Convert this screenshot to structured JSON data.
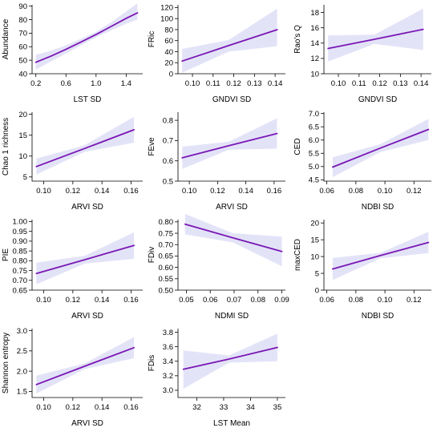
{
  "chart_data": [
    {
      "type": "line",
      "ylabel": "Abundance",
      "xlabel": "LST SD",
      "xticks": [
        0.2,
        0.6,
        1.0,
        1.4
      ],
      "xtick_labels": [
        "0.2",
        "0.6",
        "1.0",
        "1.4"
      ],
      "yticks": [
        40,
        50,
        60,
        70,
        80,
        90
      ],
      "ytick_labels": [
        "40",
        "50",
        "60",
        "70",
        "80",
        "90"
      ],
      "xlim": [
        0.15,
        1.62
      ],
      "ylim": [
        40,
        91
      ],
      "fit": {
        "x": [
          0.2,
          0.4,
          0.6,
          0.8,
          1.0,
          1.2,
          1.4,
          1.55
        ],
        "y": [
          48.5,
          53.0,
          58.0,
          63.5,
          69.0,
          75.0,
          81.0,
          85.0
        ]
      },
      "ci_lower": [
        43,
        49,
        55,
        61,
        67,
        72,
        77,
        80
      ],
      "ci_upper": [
        54,
        57,
        61,
        66,
        71,
        78,
        86,
        92
      ]
    },
    {
      "type": "line",
      "ylabel": "FRic",
      "xlabel": "GNDVI SD",
      "xticks": [
        0.1,
        0.11,
        0.12,
        0.13,
        0.14
      ],
      "xtick_labels": [
        "0.10",
        "0.11",
        "0.12",
        "0.13",
        "0.14"
      ],
      "yticks": [
        0,
        20,
        40,
        60,
        80,
        100,
        120
      ],
      "ytick_labels": [
        "0",
        "20",
        "40",
        "60",
        "80",
        "100",
        "120"
      ],
      "xlim": [
        0.093,
        0.145
      ],
      "ylim": [
        0,
        125
      ],
      "fit": {
        "x": [
          0.095,
          0.1175,
          0.141
        ],
        "y": [
          23,
          51,
          80
        ]
      },
      "ci_lower": [
        2,
        40,
        50
      ],
      "ci_upper": [
        45,
        61,
        118
      ]
    },
    {
      "type": "line",
      "ylabel": "Rao's Q",
      "xlabel": "GNDVI SD",
      "xticks": [
        0.1,
        0.11,
        0.12,
        0.13,
        0.14
      ],
      "xtick_labels": [
        "0.10",
        "0.11",
        "0.12",
        "0.13",
        "0.14"
      ],
      "yticks": [
        10,
        12,
        14,
        16,
        18
      ],
      "ytick_labels": [
        "10",
        "12",
        "14",
        "16",
        "18"
      ],
      "xlim": [
        0.093,
        0.145
      ],
      "ylim": [
        10,
        19
      ],
      "fit": {
        "x": [
          0.095,
          0.1175,
          0.141
        ],
        "y": [
          13.3,
          14.5,
          15.8
        ]
      },
      "ci_lower": [
        11.6,
        13.9,
        13.1
      ],
      "ci_upper": [
        15.0,
        15.1,
        18.5
      ]
    },
    {
      "type": "line",
      "ylabel": "Chao 1 richness",
      "xlabel": "ARVI SD",
      "xticks": [
        0.1,
        0.12,
        0.14,
        0.16
      ],
      "xtick_labels": [
        "0.10",
        "0.12",
        "0.14",
        "0.16"
      ],
      "yticks": [
        5,
        10,
        15,
        20
      ],
      "ytick_labels": [
        "5",
        "10",
        "15",
        "20"
      ],
      "xlim": [
        0.092,
        0.168
      ],
      "ylim": [
        4,
        20.5
      ],
      "fit": {
        "x": [
          0.095,
          0.128,
          0.162
        ],
        "y": [
          7.5,
          11.8,
          16.3
        ]
      },
      "ci_lower": [
        5.6,
        11.0,
        13.2
      ],
      "ci_upper": [
        9.4,
        12.6,
        19.4
      ]
    },
    {
      "type": "line",
      "ylabel": "FEve",
      "xlabel": "ARVI SD",
      "xticks": [
        0.1,
        0.12,
        0.14,
        0.16
      ],
      "xtick_labels": [
        "0.10",
        "0.12",
        "0.14",
        "0.16"
      ],
      "yticks": [
        0.5,
        0.6,
        0.7,
        0.8
      ],
      "ytick_labels": [
        "0.5",
        "0.6",
        "0.7",
        "0.8"
      ],
      "xlim": [
        0.092,
        0.168
      ],
      "ylim": [
        0.5,
        0.84
      ],
      "fit": {
        "x": [
          0.095,
          0.128,
          0.162
        ],
        "y": [
          0.615,
          0.675,
          0.735
        ]
      },
      "ci_lower": [
        0.56,
        0.655,
        0.66
      ],
      "ci_upper": [
        0.67,
        0.695,
        0.81
      ]
    },
    {
      "type": "line",
      "ylabel": "CED",
      "xlabel": "NDBI SD",
      "xticks": [
        0.06,
        0.08,
        0.1,
        0.12
      ],
      "xtick_labels": [
        "0.06",
        "0.08",
        "0.10",
        "0.12"
      ],
      "yticks": [
        4.5,
        5.0,
        5.5,
        6.0,
        6.5,
        7.0
      ],
      "ytick_labels": [
        "4.5",
        "5.0",
        "5.5",
        "6.0",
        "6.5",
        "7.0"
      ],
      "xlim": [
        0.058,
        0.132
      ],
      "ylim": [
        4.45,
        7.05
      ],
      "fit": {
        "x": [
          0.064,
          0.097,
          0.13
        ],
        "y": [
          4.98,
          5.7,
          6.4
        ]
      },
      "ci_lower": [
        4.6,
        5.55,
        6.0
      ],
      "ci_upper": [
        5.35,
        5.85,
        6.8
      ]
    },
    {
      "type": "line",
      "ylabel": "PIE",
      "xlabel": "ARVI SD",
      "xticks": [
        0.1,
        0.12,
        0.14,
        0.16
      ],
      "xtick_labels": [
        "0.10",
        "0.12",
        "0.14",
        "0.16"
      ],
      "yticks": [
        0.65,
        0.7,
        0.75,
        0.8,
        0.85,
        0.9,
        0.95,
        1.0
      ],
      "ytick_labels": [
        "0.65",
        "0.70",
        "0.75",
        "0.80",
        "0.85",
        "0.90",
        "0.95",
        "1.00"
      ],
      "xlim": [
        0.092,
        0.168
      ],
      "ylim": [
        0.65,
        1.01
      ],
      "fit": {
        "x": [
          0.095,
          0.128,
          0.162
        ],
        "y": [
          0.735,
          0.805,
          0.878
        ]
      },
      "ci_lower": [
        0.68,
        0.785,
        0.81
      ],
      "ci_upper": [
        0.79,
        0.825,
        0.945
      ]
    },
    {
      "type": "line",
      "ylabel": "FDiv",
      "xlabel": "NDMI SD",
      "xticks": [
        0.05,
        0.06,
        0.07,
        0.08,
        0.09
      ],
      "xtick_labels": [
        "0.05",
        "0.06",
        "0.07",
        "0.08",
        "0.09"
      ],
      "yticks": [
        0.5,
        0.55,
        0.6,
        0.65,
        0.7,
        0.75,
        0.8
      ],
      "ytick_labels": [
        "0.50",
        "0.55",
        "0.60",
        "0.65",
        "0.70",
        "0.75",
        "0.80"
      ],
      "xlim": [
        0.0465,
        0.0915
      ],
      "ylim": [
        0.5,
        0.81
      ],
      "fit": {
        "x": [
          0.0495,
          0.0695,
          0.09
        ],
        "y": [
          0.79,
          0.73,
          0.67
        ]
      },
      "ci_lower": [
        0.745,
        0.71,
        0.605
      ],
      "ci_upper": [
        0.835,
        0.75,
        0.735
      ]
    },
    {
      "type": "line",
      "ylabel": "maxCED",
      "xlabel": "NDBI SD",
      "xticks": [
        0.06,
        0.08,
        0.1,
        0.12
      ],
      "xtick_labels": [
        "0.06",
        "0.08",
        "0.10",
        "0.12"
      ],
      "yticks": [
        0,
        5,
        10,
        15,
        20
      ],
      "ytick_labels": [
        "0",
        "5",
        "10",
        "15",
        "20"
      ],
      "xlim": [
        0.058,
        0.132
      ],
      "ylim": [
        0,
        21
      ],
      "fit": {
        "x": [
          0.064,
          0.097,
          0.13
        ],
        "y": [
          6.3,
          10.3,
          14.2
        ]
      },
      "ci_lower": [
        3.0,
        9.5,
        11.0
      ],
      "ci_upper": [
        9.6,
        11.1,
        17.4
      ]
    },
    {
      "type": "line",
      "ylabel": "Shannon entropy",
      "xlabel": "ARVI SD",
      "xticks": [
        0.1,
        0.12,
        0.14,
        0.16
      ],
      "xtick_labels": [
        "0.10",
        "0.12",
        "0.14",
        "0.16"
      ],
      "yticks": [
        1.5,
        2.0,
        2.5,
        3.0
      ],
      "ytick_labels": [
        "1.5",
        "2.0",
        "2.5",
        "3.0"
      ],
      "xlim": [
        0.092,
        0.168
      ],
      "ylim": [
        1.35,
        3.05
      ],
      "fit": {
        "x": [
          0.095,
          0.128,
          0.162
        ],
        "y": [
          1.67,
          2.12,
          2.58
        ]
      },
      "ci_lower": [
        1.45,
        2.05,
        2.32
      ],
      "ci_upper": [
        1.89,
        2.19,
        2.84
      ]
    },
    {
      "type": "line",
      "ylabel": "FDis",
      "xlabel": "LST Mean",
      "xticks": [
        32,
        33,
        34,
        35
      ],
      "xtick_labels": [
        "32",
        "33",
        "34",
        "35"
      ],
      "yticks": [
        3.0,
        3.2,
        3.4,
        3.6,
        3.8
      ],
      "ytick_labels": [
        "3.0",
        "3.2",
        "3.4",
        "3.6",
        "3.8"
      ],
      "xlim": [
        31.3,
        35.3
      ],
      "ylim": [
        2.9,
        3.85
      ],
      "fit": {
        "x": [
          31.5,
          33.2,
          35.0
        ],
        "y": [
          3.29,
          3.43,
          3.59
        ]
      },
      "ci_lower": [
        3.02,
        3.38,
        3.4
      ],
      "ci_upper": [
        3.55,
        3.48,
        3.78
      ]
    }
  ]
}
